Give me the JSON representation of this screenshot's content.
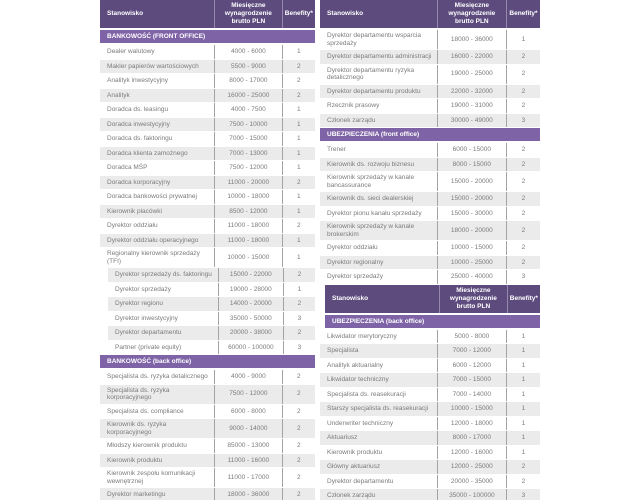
{
  "columns": {
    "position": "Stanowisko",
    "salary": "Miesięczne wynagrodzenie brutto PLN",
    "benefits": "Benefity*"
  },
  "colors": {
    "header_bg": "#5d4b7e",
    "section_bg": "#7e63a6",
    "row_bg": "#ffffff",
    "row_alt_bg": "#ebebeb",
    "row_text": "#7b7b7b",
    "header_text": "#ffffff",
    "column_separator": "#a3a3a3"
  },
  "tables": [
    {
      "id": "tbl-left",
      "blocks": [
        {
          "type": "header"
        },
        {
          "type": "section",
          "label": "BANKOWOŚĆ (FRONT OFFICE)"
        },
        {
          "type": "rows",
          "rows": [
            {
              "position": "Dealer walutowy",
              "salary": "4000 - 6000",
              "benefits": "1"
            },
            {
              "position": "Makler papierów wartościowych",
              "salary": "5500 - 9000",
              "benefits": "2"
            },
            {
              "position": "Analityk inwestycyjny",
              "salary": "8000 - 17000",
              "benefits": "2"
            },
            {
              "position": "Analityk",
              "salary": "16000 - 25000",
              "benefits": "2"
            },
            {
              "position": "Doradca ds. leasingu",
              "salary": "4000 - 7500",
              "benefits": "1"
            },
            {
              "position": "Doradca inwestycyjny",
              "salary": "7500 - 10000",
              "benefits": "1"
            },
            {
              "position": "Doradca ds. faktoringu",
              "salary": "7000 - 15000",
              "benefits": "1"
            },
            {
              "position": "Doradca klienta zamożnego",
              "salary": "7000 - 13000",
              "benefits": "1"
            },
            {
              "position": "Doradca MŚP",
              "salary": "7500 - 12000",
              "benefits": "1"
            },
            {
              "position": "Doradca korporacyjny",
              "salary": "11000 - 20000",
              "benefits": "2"
            },
            {
              "position": "Doradca bankowości prywatnej",
              "salary": "10000 - 18000",
              "benefits": "1"
            },
            {
              "position": "Kierownik placówki",
              "salary": "8500 - 12000",
              "benefits": "1"
            },
            {
              "position": "Dyrektor oddziału",
              "salary": "11000 - 18000",
              "benefits": "2"
            },
            {
              "position": "Dyrektor oddziału operacyjnego",
              "salary": "11000 - 18000",
              "benefits": "1"
            },
            {
              "position": "Regionalny kierownik sprzedaży (TFI)",
              "salary": "10000 - 15000",
              "benefits": "1"
            }
          ]
        },
        {
          "type": "rows",
          "indent": 8,
          "stripe_start": 1,
          "rows": [
            {
              "position": "Dyrektor sprzedaży ds. faktoringu",
              "salary": "15000 - 22000",
              "benefits": "2"
            },
            {
              "position": "Dyrektor sprzedaży",
              "salary": "19000 - 28000",
              "benefits": "1"
            },
            {
              "position": "Dyrektor regionu",
              "salary": "14000 - 20000",
              "benefits": "2"
            },
            {
              "position": "Dyrektor inwestycyjny",
              "salary": "35000 - 50000",
              "benefits": "3"
            },
            {
              "position": "Dyrektor departamentu",
              "salary": "20000 - 38000",
              "benefits": "2"
            },
            {
              "position": "Partner (private equity)",
              "salary": "60000 - 100000",
              "benefits": "3"
            }
          ]
        },
        {
          "type": "section",
          "label": "BANKOWOŚĆ (back office)"
        },
        {
          "type": "rows",
          "rows": [
            {
              "position": "Specjalista ds. ryzyka detalicznego",
              "salary": "4000 - 9000",
              "benefits": "2"
            },
            {
              "position": "Specjalista ds. ryzyka korporacyjnego",
              "salary": "7500 - 12000",
              "benefits": "2"
            },
            {
              "position": "Specjalista ds. compliance",
              "salary": "6000 - 8000",
              "benefits": "2"
            },
            {
              "position": "Kierownik ds. ryzyka korporacyjnego",
              "salary": "9000 - 14000",
              "benefits": "2"
            },
            {
              "position": "Młodszy kierownik produktu",
              "salary": "85000 - 13000",
              "benefits": "2"
            },
            {
              "position": "Kierownik produktu",
              "salary": "11000 - 16000",
              "benefits": "2"
            },
            {
              "position": "Kierownik zespołu komunikacji wewnętrznej",
              "salary": "11000 - 17000",
              "benefits": "2"
            },
            {
              "position": "Dyrektor marketingu",
              "salary": "18000 - 36000",
              "benefits": "2"
            }
          ]
        }
      ]
    },
    {
      "id": "tbl-right",
      "blocks": [
        {
          "type": "header"
        },
        {
          "type": "rows",
          "rows": [
            {
              "position": "Dyrektor departamentu wsparcia sprzedaży",
              "salary": "18000 - 36000",
              "benefits": "1"
            },
            {
              "position": "Dyrektor departamentu administracji",
              "salary": "16000 - 22000",
              "benefits": "2"
            },
            {
              "position": "Dyrektor departamentu ryzyka detalicznego",
              "salary": "19000 - 25000",
              "benefits": "2"
            },
            {
              "position": "Dyrektor departamentu produktu",
              "salary": "22000 - 32000",
              "benefits": "2"
            },
            {
              "position": "Rzecznik prasowy",
              "salary": "19000 - 31000",
              "benefits": "2"
            },
            {
              "position": "Członek zarządu",
              "salary": "30000 - 49000",
              "benefits": "3"
            }
          ]
        },
        {
          "type": "section",
          "label": "UBEZPIECZENIA (front office)"
        },
        {
          "type": "rows",
          "rows": [
            {
              "position": "Trener",
              "salary": "6000 - 15000",
              "benefits": "2"
            },
            {
              "position": "Kierownik ds. rozwoju biznesu",
              "salary": "8000 - 15000",
              "benefits": "2"
            },
            {
              "position": "Kierownik sprzedaży w kanale bancassurance",
              "salary": "15000 - 20000",
              "benefits": "2"
            },
            {
              "position": "Kierownik ds. sieci dealerskiej",
              "salary": "15000 - 20000",
              "benefits": "2"
            },
            {
              "position": "Dyrektor pionu kanału sprzedaży",
              "salary": "15000 - 30000",
              "benefits": "2"
            },
            {
              "position": "Kierownik sprzedaży w kanale brokerskim",
              "salary": "18000 - 20000",
              "benefits": "2"
            },
            {
              "position": "Dyrektor oddziału",
              "salary": "10000 - 15000",
              "benefits": "2"
            },
            {
              "position": "Dyrektor regionalny",
              "salary": "10000 - 25000",
              "benefits": "2"
            },
            {
              "position": "Dyrektor sprzedaży",
              "salary": "25000 - 40000",
              "benefits": "3"
            }
          ]
        },
        {
          "type": "header",
          "indent": 5
        },
        {
          "type": "section",
          "label": "UBEZPIECZENIA (back office)",
          "indent": 5
        },
        {
          "type": "rows",
          "rows": [
            {
              "position": "Likwidator merytoryczny",
              "salary": "5000 - 8000",
              "benefits": "1"
            },
            {
              "position": "Specjalista",
              "salary": "7000 - 12000",
              "benefits": "1"
            },
            {
              "position": "Analityk aktuarialny",
              "salary": "6000 - 12000",
              "benefits": "1"
            },
            {
              "position": "Likwidator techniczny",
              "salary": "7000 - 15000",
              "benefits": "1"
            },
            {
              "position": "Specjalista ds. reasekuracji",
              "salary": "7000 - 14000",
              "benefits": "1"
            },
            {
              "position": "Starszy specjalista ds. reasekuracji",
              "salary": "10000 - 15000",
              "benefits": "1"
            },
            {
              "position": "Underwriter techniczny",
              "salary": "12000 - 18000",
              "benefits": "1"
            },
            {
              "position": "Aktuariusz",
              "salary": "8000 - 17000",
              "benefits": "1"
            },
            {
              "position": "Kierownik produktu",
              "salary": "12000 - 16000",
              "benefits": "1"
            },
            {
              "position": "Główny aktuariusz",
              "salary": "12000 - 25000",
              "benefits": "2"
            },
            {
              "position": "Dyrektor departamentu",
              "salary": "20000 - 35000",
              "benefits": "2"
            },
            {
              "position": "Członek zarządu",
              "salary": "35000 - 100000",
              "benefits": "3"
            }
          ]
        }
      ]
    }
  ]
}
